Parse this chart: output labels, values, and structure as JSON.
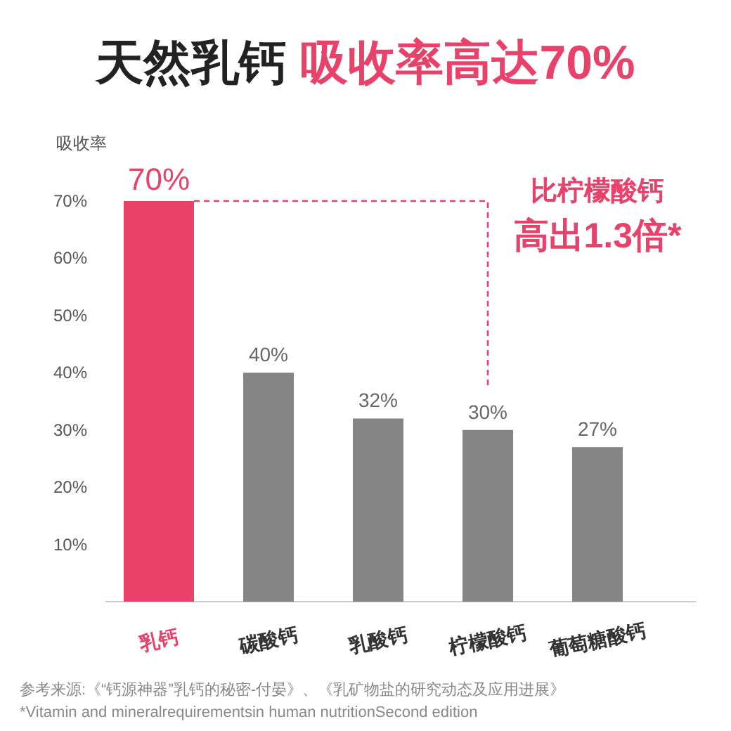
{
  "chart_data": {
    "type": "bar",
    "title": "天然乳钙 吸收率高达70%",
    "ylabel": "吸收率",
    "categories": [
      "乳钙",
      "碳酸钙",
      "乳酸钙",
      "柠檬酸钙",
      "葡萄糖酸钙"
    ],
    "values": [
      70,
      40,
      32,
      30,
      27
    ],
    "colors": [
      "#e8416a",
      "#858585",
      "#858585",
      "#858585",
      "#858585"
    ],
    "value_labels": [
      "70%",
      "40%",
      "32%",
      "30%",
      "27%"
    ],
    "ylim": [
      0,
      70
    ],
    "yticks": [
      {
        "value": 10,
        "label": "10%"
      },
      {
        "value": 20,
        "label": "20%"
      },
      {
        "value": 30,
        "label": "30%"
      },
      {
        "value": 40,
        "label": "40%"
      },
      {
        "value": 50,
        "label": "50%"
      },
      {
        "value": 60,
        "label": "60%"
      },
      {
        "value": 70,
        "label": "70%"
      }
    ],
    "grid": false,
    "annotations": [
      "比柠檬酸钙",
      "高出1.3倍*",
      "参考来源:《“钙源神器”乳钙的秘密-付晏》、《乳矿物盐的研究动态及应用进展》",
      "*Vitamin and mineralrequirementsin human nutritionSecond edition"
    ]
  }
}
